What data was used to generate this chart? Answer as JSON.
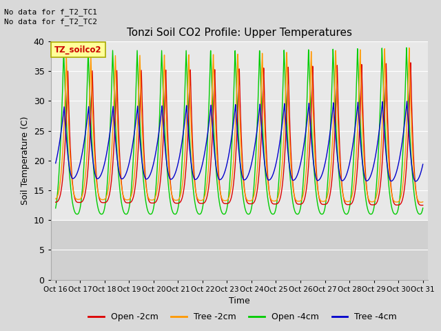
{
  "title": "Tonzi Soil CO2 Profile: Upper Temperatures",
  "xlabel": "Time",
  "ylabel": "Soil Temperature (C)",
  "no_data_text_1": "No data for f_T2_TC1",
  "no_data_text_2": "No data for f_T2_TC2",
  "legend_box_label": "TZ_soilco2",
  "ylim": [
    0,
    40
  ],
  "yticks": [
    0,
    5,
    10,
    15,
    20,
    25,
    30,
    35,
    40
  ],
  "xtick_labels": [
    "Oct 16",
    "Oct 17",
    "Oct 18",
    "Oct 19",
    "Oct 20",
    "Oct 21",
    "Oct 22",
    "Oct 23",
    "Oct 24",
    "Oct 25",
    "Oct 26",
    "Oct 27",
    "Oct 28",
    "Oct 29",
    "Oct 30",
    "Oct 31"
  ],
  "fig_bg_color": "#d9d9d9",
  "plot_bg_color": "#e8e8e8",
  "plot_bg_lower_color": "#d0d0d0",
  "grid_color": "#ffffff",
  "series": [
    {
      "label": "Open -2cm",
      "color": "#dd0000"
    },
    {
      "label": "Tree -2cm",
      "color": "#ff9900"
    },
    {
      "label": "Open -4cm",
      "color": "#00cc00"
    },
    {
      "label": "Tree -4cm",
      "color": "#0000cc"
    }
  ]
}
